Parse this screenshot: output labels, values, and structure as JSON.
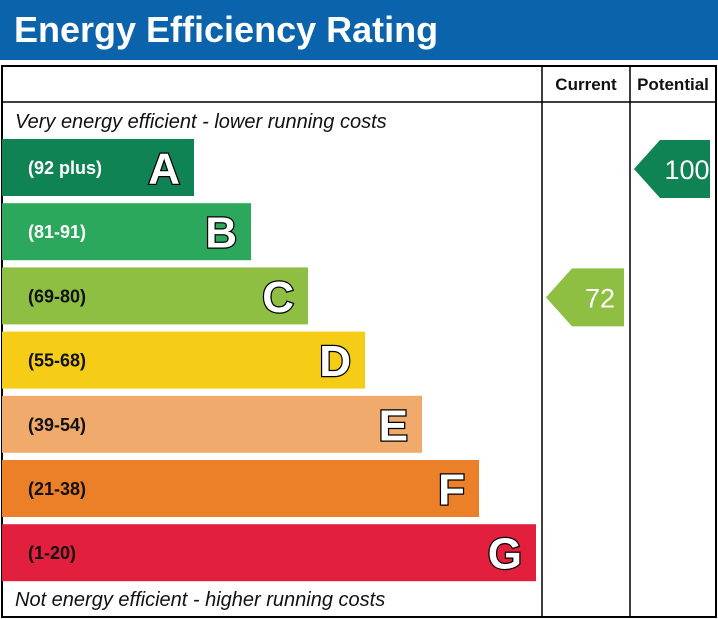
{
  "title": "Energy Efficiency Rating",
  "chart_data": {
    "type": "bar",
    "columns": [
      "Current",
      "Potential"
    ],
    "top_caption": "Very energy efficient - lower running costs",
    "bottom_caption": "Not energy efficient - higher running costs",
    "bands": [
      {
        "letter": "A",
        "range": "(92 plus)",
        "min": 92,
        "max": 100,
        "color": "#0f8354",
        "text": "light"
      },
      {
        "letter": "B",
        "range": "(81-91)",
        "min": 81,
        "max": 91,
        "color": "#2ba85c",
        "text": "light"
      },
      {
        "letter": "C",
        "range": "(69-80)",
        "min": 69,
        "max": 80,
        "color": "#8ebf43",
        "text": "dark"
      },
      {
        "letter": "D",
        "range": "(55-68)",
        "min": 55,
        "max": 68,
        "color": "#f5cd17",
        "text": "dark"
      },
      {
        "letter": "E",
        "range": "(39-54)",
        "min": 39,
        "max": 54,
        "color": "#f0aa6b",
        "text": "dark"
      },
      {
        "letter": "F",
        "range": "(21-38)",
        "min": 21,
        "max": 38,
        "color": "#ec8029",
        "text": "dark"
      },
      {
        "letter": "G",
        "range": "(1-20)",
        "min": 1,
        "max": 20,
        "color": "#e21f3c",
        "text": "dark"
      }
    ],
    "current": {
      "value": 72,
      "band": "C",
      "color": "#8ebf43"
    },
    "potential": {
      "value": 100,
      "band": "A",
      "color": "#0f8354"
    }
  }
}
